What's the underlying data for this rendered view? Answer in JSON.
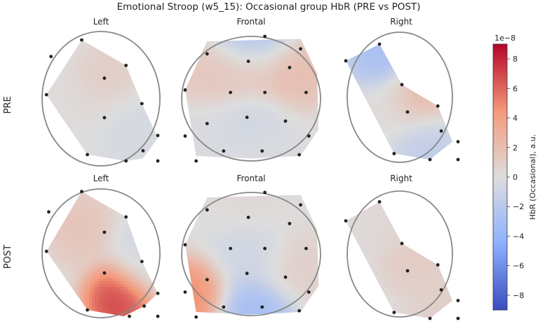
{
  "figure": {
    "title": "Emotional Stroop (w5_15): Occasional group HbR (PRE vs POST)",
    "row_labels": [
      "PRE",
      "POST"
    ],
    "column_titles": [
      "Left",
      "Frontal",
      "Right"
    ]
  },
  "colorbar": {
    "label": "HbR (Occasional), a.u.",
    "exponent_label": "1e−8",
    "ticks": [
      "8",
      "6",
      "4",
      "2",
      "0",
      "−2",
      "−4",
      "−6",
      "−8"
    ],
    "range": [
      -9,
      9
    ],
    "colormap": "coolwarm",
    "colors": {
      "low": "#3b4cc0",
      "mid": "#dddddd",
      "high": "#b40426"
    }
  },
  "chart_data": {
    "type": "heatmap",
    "plot_kind": "fNIRS topographic map",
    "scale": "1e-8",
    "units": "a.u.",
    "vmin": -9,
    "vmax": 9,
    "panels": [
      {
        "row": "PRE",
        "region": "Left",
        "hotspots": [
          {
            "c": [
              0.55,
              0.4
            ],
            "v": 1.2
          },
          {
            "c": [
              0.7,
              0.7
            ],
            "v": -0.6
          },
          {
            "c": [
              0.3,
              0.6
            ],
            "v": 0.2
          }
        ],
        "dots": [
          [
            0.06,
            0.18
          ],
          [
            0.33,
            0.05
          ],
          [
            0.72,
            0.25
          ],
          [
            0.53,
            0.35
          ],
          [
            0.02,
            0.48
          ],
          [
            0.86,
            0.55
          ],
          [
            0.53,
            0.66
          ],
          [
            1.0,
            0.8
          ],
          [
            0.87,
            0.92
          ],
          [
            0.38,
            0.95
          ],
          [
            1.0,
            1.0
          ],
          [
            0.72,
            1.0
          ]
        ]
      },
      {
        "row": "PRE",
        "region": "Frontal",
        "hotspots": [
          {
            "c": [
              0.5,
              0.03
            ],
            "v": -3.5
          },
          {
            "c": [
              0.2,
              0.3
            ],
            "v": 1.6
          },
          {
            "c": [
              0.47,
              0.25
            ],
            "v": 1.9
          },
          {
            "c": [
              0.8,
              0.3
            ],
            "v": 2.3
          },
          {
            "c": [
              0.5,
              0.68
            ],
            "v": -0.8
          },
          {
            "c": [
              0.15,
              0.8
            ],
            "v": -0.3
          },
          {
            "c": [
              0.6,
              0.95
            ],
            "v": -0.2
          }
        ],
        "dots": [
          [
            0.6,
            0.0
          ],
          [
            0.18,
            0.14
          ],
          [
            0.86,
            0.1
          ],
          [
            0.48,
            0.2
          ],
          [
            0.78,
            0.25
          ],
          [
            0.02,
            0.43
          ],
          [
            0.35,
            0.45
          ],
          [
            0.6,
            0.45
          ],
          [
            0.9,
            0.45
          ],
          [
            0.18,
            0.7
          ],
          [
            0.47,
            0.65
          ],
          [
            0.75,
            0.68
          ],
          [
            0.02,
            0.8
          ],
          [
            0.92,
            0.8
          ],
          [
            0.3,
            0.92
          ],
          [
            0.58,
            0.92
          ],
          [
            0.85,
            0.95
          ],
          [
            0.1,
            1.0
          ]
        ]
      },
      {
        "row": "PRE",
        "region": "Right",
        "hotspots": [
          {
            "c": [
              0.3,
              0.1
            ],
            "v": -3.2
          },
          {
            "c": [
              0.65,
              0.5
            ],
            "v": 2.6
          },
          {
            "c": [
              0.4,
              0.6
            ],
            "v": 0.1
          },
          {
            "c": [
              0.7,
              0.85
            ],
            "v": -1.8
          }
        ],
        "dots": [
          [
            0.0,
            0.17
          ],
          [
            0.3,
            0.03
          ],
          [
            0.5,
            0.37
          ],
          [
            0.82,
            0.55
          ],
          [
            0.55,
            0.6
          ],
          [
            1.0,
            0.85
          ],
          [
            0.85,
            0.76
          ],
          [
            0.43,
            0.95
          ],
          [
            0.75,
            1.0
          ],
          [
            1.0,
            1.0
          ]
        ]
      },
      {
        "row": "POST",
        "region": "Left",
        "hotspots": [
          {
            "c": [
              0.3,
              0.3
            ],
            "v": 1.8
          },
          {
            "c": [
              0.65,
              0.88
            ],
            "v": 7.8
          },
          {
            "c": [
              0.85,
              0.55
            ],
            "v": -0.6
          }
        ],
        "dots": [
          [
            0.04,
            0.18
          ],
          [
            0.33,
            0.02
          ],
          [
            0.72,
            0.22
          ],
          [
            0.53,
            0.34
          ],
          [
            0.02,
            0.49
          ],
          [
            0.86,
            0.57
          ],
          [
            0.53,
            0.66
          ],
          [
            1.0,
            0.82
          ],
          [
            0.88,
            0.92
          ],
          [
            0.38,
            0.95
          ],
          [
            0.75,
            1.0
          ],
          [
            1.0,
            1.0
          ]
        ]
      },
      {
        "row": "POST",
        "region": "Frontal",
        "hotspots": [
          {
            "c": [
              0.05,
              0.85
            ],
            "v": 5.5
          },
          {
            "c": [
              0.5,
              0.95
            ],
            "v": -3.5
          },
          {
            "c": [
              0.5,
              0.1
            ],
            "v": 0.3
          },
          {
            "c": [
              0.85,
              0.6
            ],
            "v": 1.0
          },
          {
            "c": [
              0.5,
              0.5
            ],
            "v": -0.9
          }
        ],
        "dots": [
          [
            0.6,
            0.0
          ],
          [
            0.18,
            0.14
          ],
          [
            0.86,
            0.1
          ],
          [
            0.48,
            0.2
          ],
          [
            0.78,
            0.25
          ],
          [
            0.02,
            0.42
          ],
          [
            0.35,
            0.45
          ],
          [
            0.6,
            0.45
          ],
          [
            0.9,
            0.45
          ],
          [
            0.18,
            0.7
          ],
          [
            0.47,
            0.65
          ],
          [
            0.75,
            0.68
          ],
          [
            0.02,
            0.8
          ],
          [
            0.92,
            0.8
          ],
          [
            0.3,
            0.92
          ],
          [
            0.58,
            0.92
          ],
          [
            0.85,
            0.95
          ],
          [
            0.1,
            1.0
          ]
        ]
      },
      {
        "row": "POST",
        "region": "Right",
        "hotspots": [
          {
            "c": [
              0.35,
              0.2
            ],
            "v": 0.4
          },
          {
            "c": [
              0.6,
              0.5
            ],
            "v": 1.3
          },
          {
            "c": [
              0.85,
              0.85
            ],
            "v": 1.0
          }
        ],
        "dots": [
          [
            0.0,
            0.18
          ],
          [
            0.3,
            0.02
          ],
          [
            0.5,
            0.37
          ],
          [
            0.82,
            0.55
          ],
          [
            0.55,
            0.6
          ],
          [
            1.0,
            0.85
          ],
          [
            0.85,
            0.76
          ],
          [
            0.43,
            0.95
          ],
          [
            0.75,
            1.0
          ],
          [
            1.0,
            1.0
          ]
        ]
      }
    ]
  }
}
